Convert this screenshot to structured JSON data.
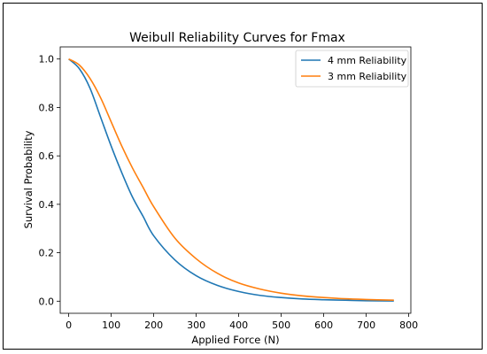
{
  "chart_data": {
    "type": "line",
    "title": "Weibull Reliability Curves for Fmax",
    "xlabel": "Applied Force (N)",
    "ylabel": "Survival Probability",
    "xlim": [
      -20,
      805
    ],
    "ylim": [
      -0.05,
      1.05
    ],
    "xticks": [
      0,
      100,
      200,
      300,
      400,
      500,
      600,
      700,
      800
    ],
    "yticks": [
      0.0,
      0.2,
      0.4,
      0.6,
      0.8,
      1.0
    ],
    "xtick_labels": [
      "0",
      "100",
      "200",
      "300",
      "400",
      "500",
      "600",
      "700",
      "800"
    ],
    "ytick_labels": [
      "0.0",
      "0.2",
      "0.4",
      "0.6",
      "0.8",
      "1.0"
    ],
    "grid": false,
    "legend_position": "top-right",
    "series": [
      {
        "name": "4 mm Reliability",
        "color": "#1f77b4",
        "x": [
          0,
          25,
          50,
          75,
          100,
          125,
          150,
          175,
          200,
          250,
          300,
          350,
          400,
          450,
          500,
          550,
          600,
          650,
          700,
          765
        ],
        "y": [
          1.0,
          0.96,
          0.88,
          0.76,
          0.64,
          0.53,
          0.43,
          0.35,
          0.27,
          0.17,
          0.105,
          0.065,
          0.04,
          0.024,
          0.015,
          0.009,
          0.006,
          0.004,
          0.002,
          0.001
        ]
      },
      {
        "name": "3 mm Reliability",
        "color": "#ff7f0e",
        "x": [
          0,
          25,
          50,
          75,
          100,
          125,
          150,
          175,
          200,
          250,
          300,
          350,
          400,
          450,
          500,
          550,
          600,
          650,
          700,
          765
        ],
        "y": [
          1.0,
          0.975,
          0.92,
          0.84,
          0.74,
          0.64,
          0.55,
          0.47,
          0.39,
          0.26,
          0.175,
          0.115,
          0.075,
          0.05,
          0.033,
          0.022,
          0.015,
          0.01,
          0.007,
          0.004
        ]
      }
    ]
  }
}
